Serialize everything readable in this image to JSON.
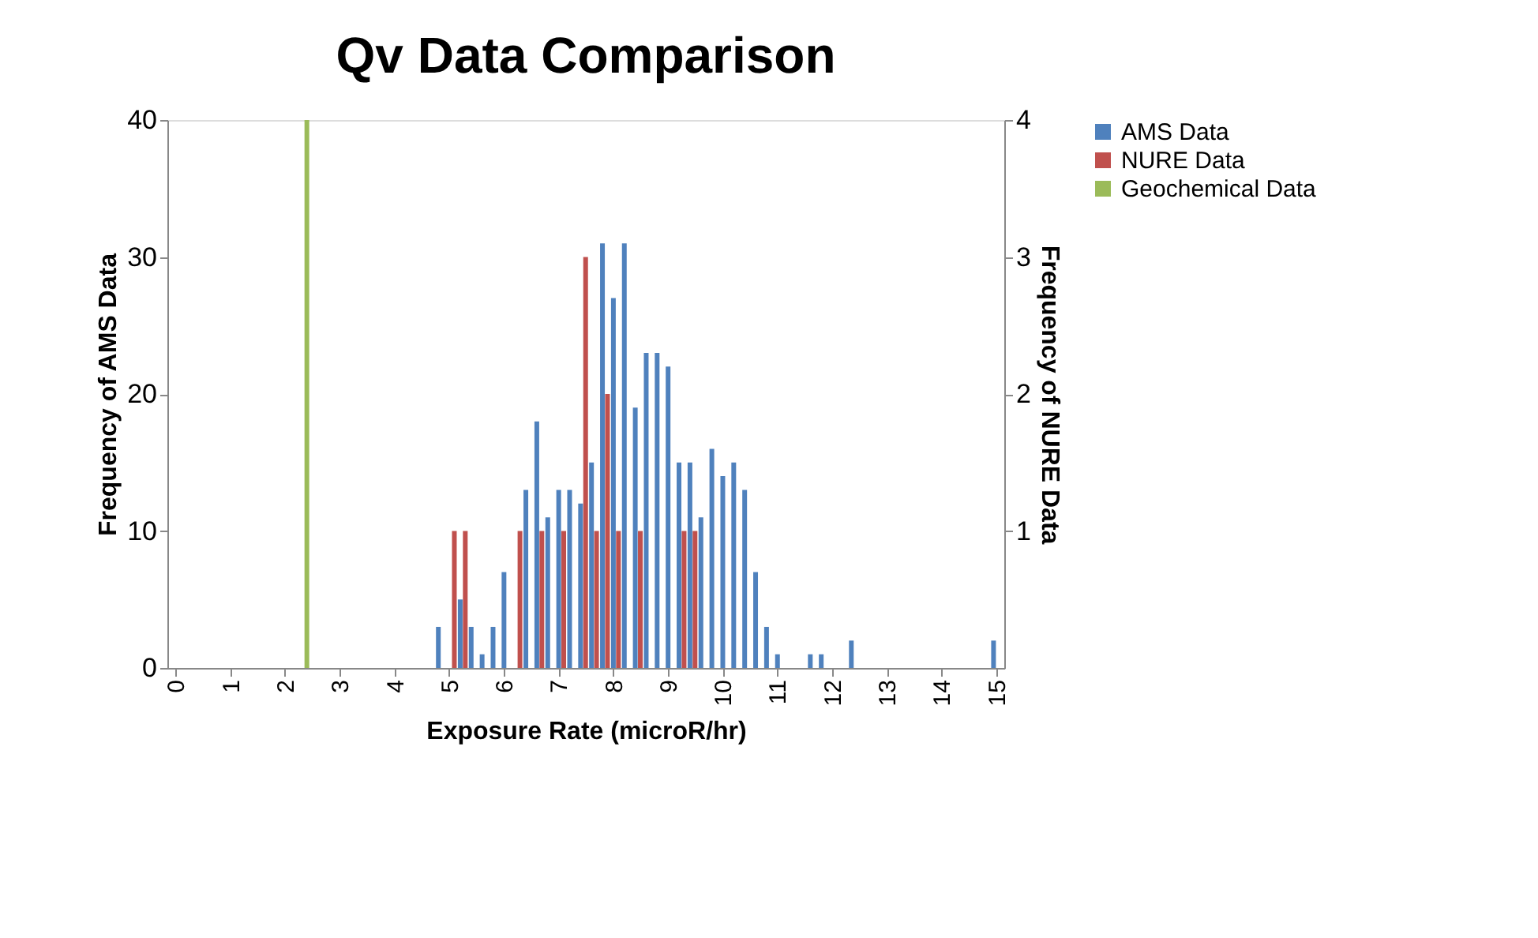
{
  "chart_data": {
    "type": "bar",
    "title": "Qv Data Comparison",
    "xlabel": "Exposure Rate (microR/hr)",
    "ylabel": "Frequency of AMS Data",
    "y2label": "Frequency of NURE Data",
    "xlim": [
      -0.15,
      15.15
    ],
    "xticks": [
      0,
      1,
      2,
      3,
      4,
      5,
      6,
      7,
      8,
      9,
      10,
      11,
      12,
      13,
      14,
      15
    ],
    "ylim": [
      0,
      40
    ],
    "yticks": [
      0,
      10,
      20,
      30,
      40
    ],
    "y2lim": [
      0,
      4
    ],
    "y2ticks": [
      1,
      2,
      3,
      4
    ],
    "grid": false,
    "legend": "right",
    "series": [
      {
        "name": "AMS Data",
        "color": "#4f81bd",
        "x": [
          4.85,
          5.25,
          5.45,
          5.65,
          5.85,
          6.05,
          6.45,
          6.65,
          6.85,
          7.05,
          7.25,
          7.45,
          7.65,
          7.85,
          8.05,
          8.25,
          8.45,
          8.65,
          8.85,
          9.05,
          9.25,
          9.45,
          9.65,
          9.85,
          10.05,
          10.25,
          10.45,
          10.65,
          10.85,
          11.05,
          11.65,
          11.85,
          12.4,
          15.0
        ],
        "values": [
          3,
          5,
          3,
          1,
          3,
          7,
          13,
          18,
          11,
          13,
          13,
          12,
          15,
          31,
          27,
          31,
          19,
          23,
          23,
          22,
          15,
          15,
          11,
          16,
          14,
          15,
          13,
          7,
          3,
          1,
          1,
          1,
          2,
          2
        ]
      },
      {
        "name": "NURE Data",
        "color": "#c0504d",
        "axis": "y2",
        "x": [
          5.05,
          5.25,
          6.25,
          6.65,
          7.05,
          7.45,
          7.65,
          7.85,
          8.05,
          8.45,
          9.25,
          9.45
        ],
        "values": [
          1,
          1,
          1,
          1,
          1,
          3,
          1,
          2,
          1,
          1,
          1,
          1
        ]
      },
      {
        "name": "Geochemical Data",
        "color": "#9bbb59",
        "x": [
          2.4
        ],
        "values": [
          40
        ]
      }
    ]
  }
}
